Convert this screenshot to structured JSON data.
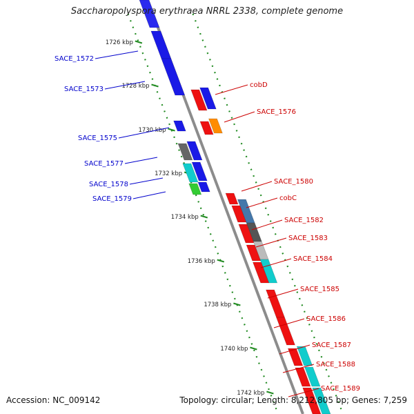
{
  "title": "Saccharopolyspora erythraea NRRL 2338, complete genome",
  "footer": {
    "accession": "Accession: NC_009142",
    "topology": "Topology: circular; Length: 8,212,805 bp; Genes: 7,259"
  },
  "colors": {
    "backbone": "#8c8c8c",
    "tick_dots": "#228b22",
    "forward_label": "#0000cc",
    "reverse_label": "#cc0000"
  },
  "ticks": [
    "1726 kbp",
    "1728 kbp",
    "1730 kbp",
    "1732 kbp",
    "1734 kbp",
    "1736 kbp",
    "1738 kbp",
    "1740 kbp",
    "1742 kbp"
  ],
  "forward_labels": [
    "SACE_1572",
    "SACE_1573",
    "SACE_1575",
    "SACE_1577",
    "SACE_1578",
    "SACE_1579"
  ],
  "reverse_labels": [
    "cobD",
    "SACE_1576",
    "SACE_1580",
    "cobC",
    "SACE_1582",
    "SACE_1583",
    "SACE_1584",
    "SACE_1585",
    "SACE_1586",
    "SACE_1587",
    "SACE_1588",
    "SACE_1589"
  ]
}
